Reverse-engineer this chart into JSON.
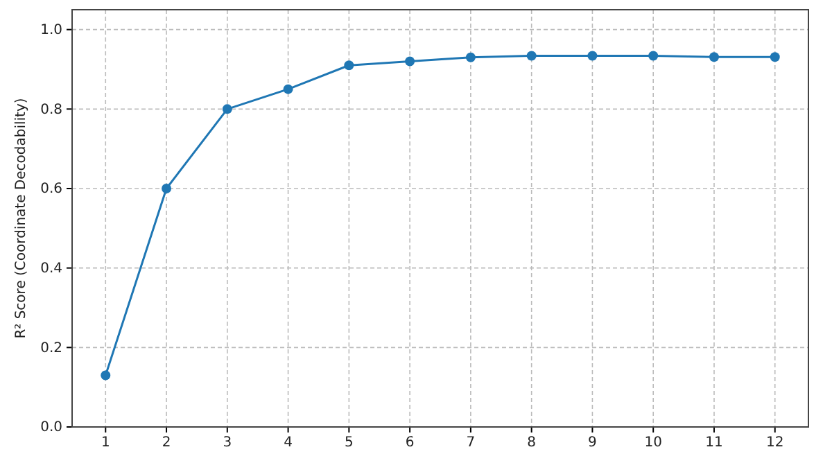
{
  "chart_data": {
    "type": "line",
    "ylabel": "R² Score (Coordinate Decodability)",
    "x": [
      1,
      2,
      3,
      4,
      5,
      6,
      7,
      8,
      9,
      10,
      11,
      12
    ],
    "series": [
      {
        "color": "#1f77b4",
        "values": [
          0.13,
          0.6,
          0.8,
          0.85,
          0.91,
          0.92,
          0.93,
          0.934,
          0.934,
          0.934,
          0.931,
          0.931
        ]
      }
    ],
    "xlim": [
      0.45,
      12.55
    ],
    "ylim": [
      0,
      1.05
    ],
    "xticks": [
      1,
      2,
      3,
      4,
      5,
      6,
      7,
      8,
      9,
      10,
      11,
      12
    ],
    "yticks": [
      {
        "value": 0,
        "label": "0.0"
      },
      {
        "value": 0.2,
        "label": "0.2"
      },
      {
        "value": 0.4,
        "label": "0.4"
      },
      {
        "value": 0.6,
        "label": "0.6"
      },
      {
        "value": 0.8,
        "label": "0.8"
      },
      {
        "value": 1,
        "label": "1.0"
      }
    ],
    "grid": true,
    "marker": "circle",
    "line_style": "solid"
  }
}
